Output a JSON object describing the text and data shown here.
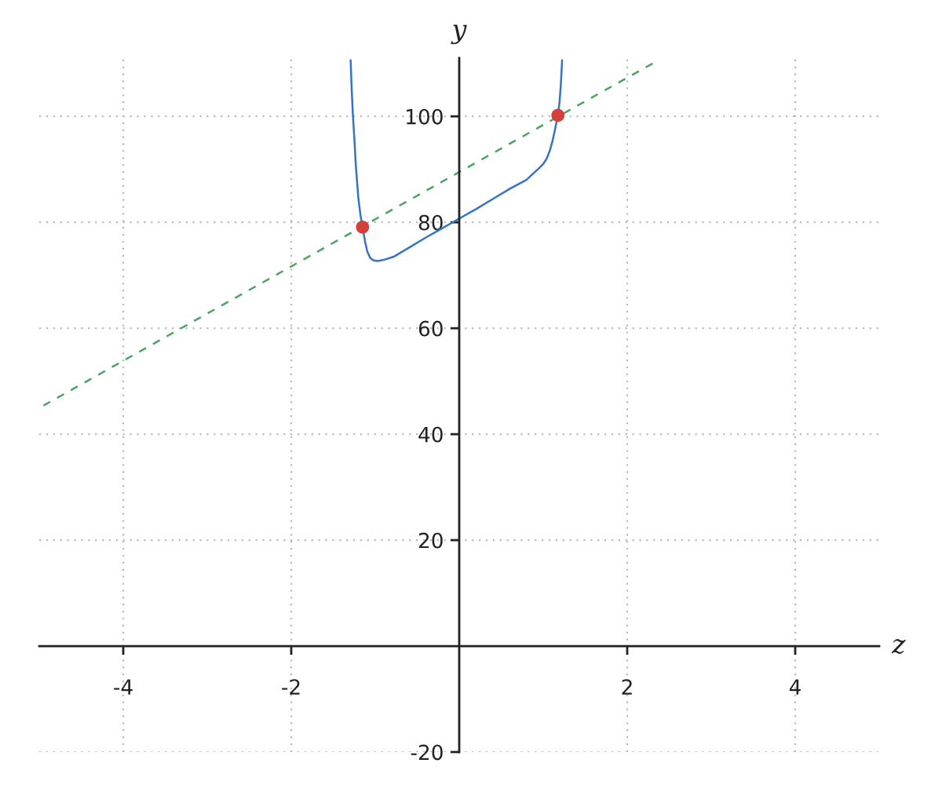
{
  "chart_data": {
    "type": "line",
    "xlabel": "z",
    "ylabel": "y",
    "xlim": [
      -5,
      5
    ],
    "ylim": [
      -20,
      111
    ],
    "xticks": [
      -4,
      -2,
      2,
      4
    ],
    "yticks": [
      -20,
      20,
      40,
      60,
      80,
      100
    ],
    "grid": true,
    "series": [
      {
        "color": "#3574c4",
        "line_style": "solid",
        "x": [
          -1.293,
          -1.28,
          -1.265,
          -1.25,
          -1.23,
          -1.2,
          -1.175,
          -1.151,
          -1.12,
          -1.095,
          -1.06,
          -1.02,
          -0.97,
          -0.9,
          -0.78,
          -0.6,
          -0.4,
          -0.2,
          0,
          0.2,
          0.4,
          0.6,
          0.8,
          0.88,
          0.95,
          1.0,
          1.04,
          1.08,
          1.11,
          1.14,
          1.175,
          1.195,
          1.21,
          1.225
        ],
        "values": [
          110.6,
          105,
          100,
          96.2,
          90.5,
          84.4,
          81.3,
          79.1,
          76.3,
          74.5,
          73.3,
          72.8,
          72.7,
          72.9,
          73.5,
          75.2,
          77.1,
          78.9,
          80.7,
          82.5,
          84.4,
          86.3,
          88.0,
          89.2,
          90.2,
          91.0,
          92.0,
          93.6,
          95.3,
          97.5,
          100.2,
          102.8,
          106.1,
          110.6
        ]
      },
      {
        "color": "#4aa564",
        "line_style": "dashed",
        "x": [
          -4.95,
          2.36
        ],
        "values": [
          45.4,
          110.5
        ]
      },
      {
        "type": "scatter",
        "color": "#d43f3a",
        "marker": "circle",
        "x": [
          -1.151,
          1.175
        ],
        "values": [
          79.1,
          100.2
        ]
      }
    ]
  }
}
